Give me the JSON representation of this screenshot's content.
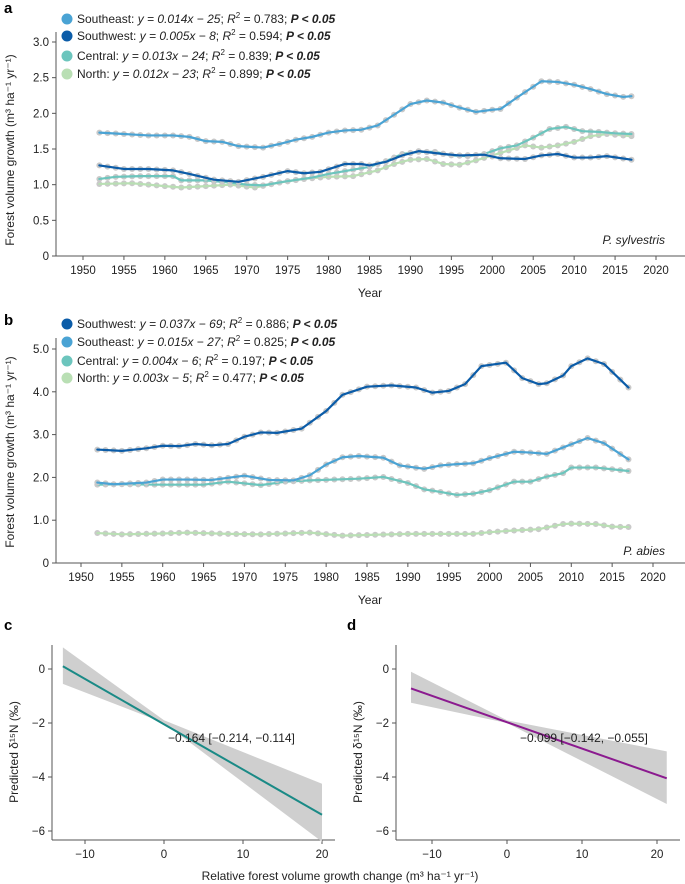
{
  "chart_data": [
    {
      "panel": "a",
      "type": "line",
      "species": "P. sylvestris",
      "xlabel": "Year",
      "ylabel": "Forest volume growth (m³ ha⁻¹ yr⁻¹)",
      "xlim": [
        1945,
        2025
      ],
      "ylim": [
        0,
        3.1
      ],
      "xticks": [
        1950,
        1955,
        1960,
        1965,
        1970,
        1975,
        1980,
        1985,
        1990,
        1995,
        2000,
        2005,
        2010,
        2015,
        2020
      ],
      "yticks": [
        {
          "v": 0,
          "t": "0"
        },
        {
          "v": 0.5,
          "t": "0.5"
        },
        {
          "v": 1,
          "t": "1.0"
        },
        {
          "v": 1.5,
          "t": "1.5"
        },
        {
          "v": 2,
          "t": "2.0"
        },
        {
          "v": 2.5,
          "t": "2.5"
        },
        {
          "v": 3,
          "t": "3.0"
        }
      ],
      "grid": false,
      "legend_placement": "top-left",
      "marker_color": "#c9c9c9",
      "series": [
        {
          "name": "Southeast",
          "equation": "y = 0.014x − 25",
          "r2": "0.783",
          "p": "P < 0.05",
          "color": "#4aa3d4",
          "x": [
            1952,
            1955,
            1958,
            1961,
            1963,
            1965,
            1967,
            1969,
            1972,
            1974,
            1976,
            1978,
            1980,
            1982,
            1984,
            1986,
            1988,
            1990,
            1992,
            1994,
            1996,
            1998,
            2000,
            2001,
            2003,
            2006,
            2008,
            2010,
            2012,
            2014,
            2016,
            2017
          ],
          "y": [
            1.73,
            1.71,
            1.69,
            1.69,
            1.67,
            1.61,
            1.6,
            1.54,
            1.52,
            1.57,
            1.63,
            1.67,
            1.73,
            1.76,
            1.77,
            1.83,
            1.98,
            2.13,
            2.18,
            2.15,
            2.08,
            2.02,
            2.05,
            2.06,
            2.22,
            2.45,
            2.44,
            2.4,
            2.34,
            2.27,
            2.23,
            2.24
          ]
        },
        {
          "name": "Southwest",
          "equation": "y = 0.005x − 8",
          "r2": "0.594",
          "p": "P < 0.05",
          "color": "#0b5ca8",
          "x": [
            1952,
            1955,
            1958,
            1961,
            1963,
            1966,
            1969,
            1972,
            1975,
            1977,
            1979,
            1982,
            1984,
            1985,
            1987,
            1989,
            1991,
            1994,
            1996,
            1999,
            2001,
            2004,
            2006,
            2008,
            2010,
            2012,
            2014,
            2017
          ],
          "y": [
            1.27,
            1.22,
            1.22,
            1.2,
            1.15,
            1.07,
            1.04,
            1.11,
            1.19,
            1.16,
            1.18,
            1.29,
            1.29,
            1.27,
            1.32,
            1.41,
            1.47,
            1.43,
            1.41,
            1.42,
            1.37,
            1.36,
            1.41,
            1.43,
            1.38,
            1.38,
            1.4,
            1.35
          ]
        },
        {
          "name": "Central",
          "equation": "y = 0.013x − 24",
          "r2": "0.839",
          "p": "P < 0.05",
          "color": "#6cc5bd",
          "x": [
            1952,
            1954,
            1957,
            1961,
            1962,
            1965,
            1968,
            1970,
            1972,
            1975,
            1978,
            1980,
            1983,
            1985,
            1987,
            1989,
            1991,
            1993,
            1995,
            1997,
            1999,
            2001,
            2003,
            2005,
            2007,
            2009,
            2011,
            2013,
            2015,
            2017
          ],
          "y": [
            1.08,
            1.11,
            1.12,
            1.12,
            1.06,
            1.06,
            1.03,
            1.0,
            0.99,
            1.05,
            1.1,
            1.15,
            1.21,
            1.25,
            1.33,
            1.43,
            1.46,
            1.46,
            1.41,
            1.4,
            1.43,
            1.51,
            1.55,
            1.66,
            1.78,
            1.81,
            1.75,
            1.74,
            1.72,
            1.71
          ]
        },
        {
          "name": "North",
          "equation": "y = 0.012x − 23",
          "r2": "0.899",
          "p": "P < 0.05",
          "color": "#b9dfb4",
          "x": [
            1952,
            1956,
            1960,
            1962,
            1965,
            1968,
            1971,
            1974,
            1977,
            1980,
            1983,
            1986,
            1988,
            1990,
            1992,
            1994,
            1996,
            1998,
            2000,
            2002,
            2004,
            2006,
            2008,
            2010,
            2012,
            2014,
            2017
          ],
          "y": [
            1.01,
            1.02,
            0.98,
            0.96,
            0.98,
            1.0,
            0.96,
            1.03,
            1.08,
            1.11,
            1.12,
            1.2,
            1.29,
            1.35,
            1.36,
            1.29,
            1.28,
            1.34,
            1.41,
            1.48,
            1.55,
            1.52,
            1.55,
            1.6,
            1.68,
            1.71,
            1.68
          ]
        }
      ]
    },
    {
      "panel": "b",
      "type": "line",
      "species": "P. abies",
      "xlabel": "Year",
      "ylabel": "Forest volume growth (m³ ha⁻¹ yr⁻¹)",
      "xlim": [
        1945,
        2025
      ],
      "ylim": [
        0,
        5.2
      ],
      "xticks": [
        1950,
        1955,
        1960,
        1965,
        1970,
        1975,
        1980,
        1985,
        1990,
        1995,
        2000,
        2005,
        2010,
        2015,
        2020
      ],
      "yticks": [
        {
          "v": 0,
          "t": "0"
        },
        {
          "v": 1,
          "t": "1.0"
        },
        {
          "v": 2,
          "t": "2.0"
        },
        {
          "v": 3,
          "t": "3.0"
        },
        {
          "v": 4,
          "t": "4.0"
        },
        {
          "v": 5,
          "t": "5.0"
        }
      ],
      "grid": false,
      "legend_placement": "top-left",
      "marker_color": "#c9c9c9",
      "series": [
        {
          "name": "Southwest",
          "equation": "y = 0.037x − 69",
          "r2": "0.886",
          "p": "P < 0.05",
          "color": "#0b5ca8",
          "x": [
            1952,
            1955,
            1958,
            1960,
            1962,
            1964,
            1966,
            1968,
            1970,
            1972,
            1974,
            1977,
            1980,
            1982,
            1985,
            1988,
            1991,
            1993,
            1995,
            1997,
            1999,
            2002,
            2004,
            2006,
            2007,
            2009,
            2010,
            2012,
            2014,
            2017
          ],
          "y": [
            2.65,
            2.62,
            2.68,
            2.74,
            2.73,
            2.78,
            2.75,
            2.78,
            2.95,
            3.05,
            3.04,
            3.14,
            3.55,
            3.93,
            4.12,
            4.15,
            4.1,
            3.98,
            4.02,
            4.18,
            4.6,
            4.68,
            4.32,
            4.18,
            4.2,
            4.38,
            4.6,
            4.78,
            4.65,
            4.1
          ]
        },
        {
          "name": "Southeast",
          "equation": "y = 0.015x − 27",
          "r2": "0.825",
          "p": "P < 0.05",
          "color": "#4aa3d4",
          "x": [
            1952,
            1954,
            1958,
            1960,
            1963,
            1966,
            1970,
            1973,
            1976,
            1978,
            1980,
            1982,
            1984,
            1987,
            1989,
            1992,
            1994,
            1996,
            1998,
            2000,
            2003,
            2005,
            2007,
            2009,
            2012,
            2014,
            2017
          ],
          "y": [
            1.88,
            1.84,
            1.88,
            1.95,
            1.95,
            1.94,
            2.04,
            1.94,
            1.93,
            2.05,
            2.3,
            2.47,
            2.5,
            2.46,
            2.28,
            2.2,
            2.28,
            2.31,
            2.33,
            2.45,
            2.6,
            2.58,
            2.55,
            2.7,
            2.92,
            2.8,
            2.42
          ]
        },
        {
          "name": "Central",
          "equation": "y = 0.004x − 6",
          "r2": "0.197",
          "p": "P < 0.05",
          "color": "#6cc5bd",
          "x": [
            1952,
            1955,
            1960,
            1965,
            1968,
            1972,
            1975,
            1978,
            1981,
            1984,
            1987,
            1990,
            1992,
            1994,
            1996,
            1998,
            2000,
            2003,
            2005,
            2007,
            2009,
            2010,
            2013,
            2017
          ],
          "y": [
            1.83,
            1.84,
            1.83,
            1.83,
            1.9,
            1.82,
            1.9,
            1.93,
            1.95,
            1.97,
            2.01,
            1.87,
            1.72,
            1.66,
            1.59,
            1.62,
            1.7,
            1.9,
            1.9,
            2.02,
            2.1,
            2.23,
            2.23,
            2.15
          ]
        },
        {
          "name": "North",
          "equation": "y = 0.003x − 5",
          "r2": "0.477",
          "p": "P < 0.05",
          "color": "#b9dfb4",
          "x": [
            1952,
            1955,
            1960,
            1963,
            1968,
            1972,
            1978,
            1982,
            1986,
            1990,
            1995,
            1998,
            2000,
            2003,
            2006,
            2009,
            2010,
            2013,
            2015,
            2017
          ],
          "y": [
            0.7,
            0.67,
            0.69,
            0.71,
            0.68,
            0.67,
            0.71,
            0.64,
            0.66,
            0.68,
            0.68,
            0.68,
            0.72,
            0.76,
            0.79,
            0.91,
            0.92,
            0.91,
            0.85,
            0.84
          ]
        }
      ]
    },
    {
      "panel": "c",
      "type": "line",
      "ylabel": "Predicted δ¹⁵N (‰)",
      "xlim": [
        -14,
        22
      ],
      "ylim": [
        -6.3,
        1.3
      ],
      "xticks": [
        {
          "v": -10,
          "t": "−10"
        },
        {
          "v": 0,
          "t": "0"
        },
        {
          "v": 10,
          "t": "10"
        },
        {
          "v": 20,
          "t": "20"
        }
      ],
      "yticks": [
        {
          "v": 0,
          "t": "0"
        },
        {
          "v": -2,
          "t": "−2"
        },
        {
          "v": -4,
          "t": "−4"
        },
        {
          "v": -6,
          "t": "−6"
        }
      ],
      "annotation": "−0.164 [−0.214, −0.114]",
      "line_color": "#1a8a86",
      "ci_color": "#cfcfcf",
      "line": {
        "x": [
          -12.8,
          20
        ],
        "y": [
          0.1,
          -5.4
        ]
      },
      "ci": {
        "x": [
          -12.8,
          0,
          20
        ],
        "lower": [
          -0.55,
          -2.0,
          -6.4
        ],
        "upper": [
          0.8,
          -1.9,
          -4.25
        ]
      }
    },
    {
      "panel": "d",
      "type": "line",
      "ylabel": "Predicted δ¹⁵N (‰)",
      "xlim": [
        -14,
        22
      ],
      "ylim": [
        -6.3,
        1.3
      ],
      "xticks": [
        {
          "v": -10,
          "t": "−10"
        },
        {
          "v": 0,
          "t": "0"
        },
        {
          "v": 10,
          "t": "10"
        },
        {
          "v": 20,
          "t": "20"
        }
      ],
      "yticks": [
        {
          "v": 0,
          "t": "0"
        },
        {
          "v": -2,
          "t": "−2"
        },
        {
          "v": -4,
          "t": "−4"
        },
        {
          "v": -6,
          "t": "−6"
        }
      ],
      "annotation": "−0.099 [−0.142, −0.055]",
      "line_color": "#8b1a8f",
      "ci_color": "#cfcfcf",
      "line": {
        "x": [
          -12.8,
          21.3
        ],
        "y": [
          -0.72,
          -4.05
        ]
      },
      "ci": {
        "x": [
          -12.8,
          0,
          21.3
        ],
        "lower": [
          -1.25,
          -2.0,
          -5.0
        ],
        "upper": [
          -0.1,
          -1.9,
          -3.05
        ]
      }
    }
  ],
  "shared_xlabel": "Relative forest volume growth change (m³ ha⁻¹ yr⁻¹)"
}
